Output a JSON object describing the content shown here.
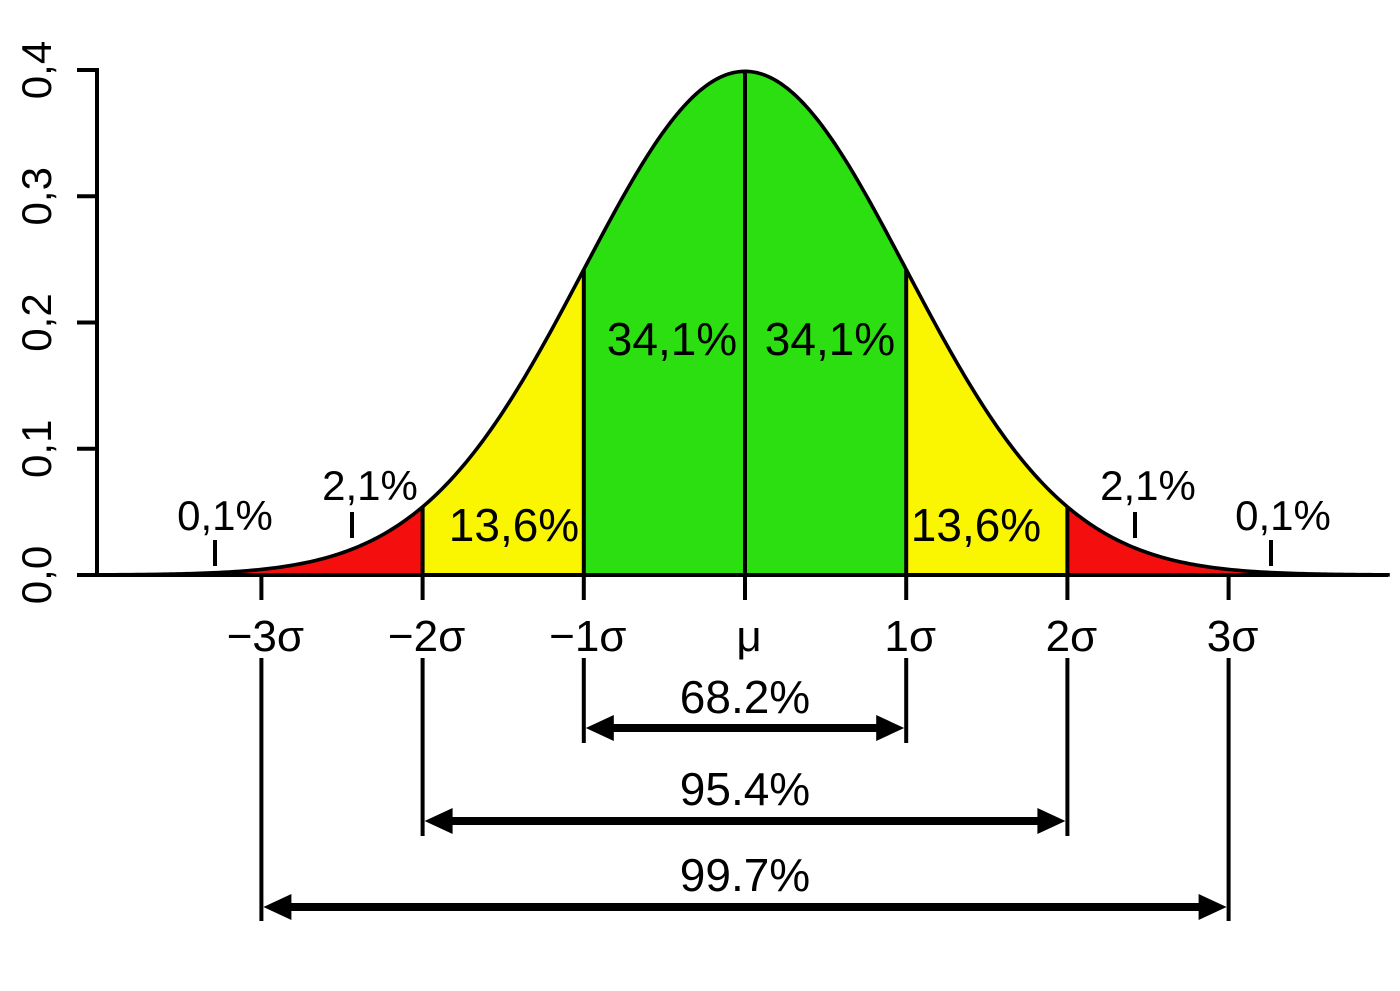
{
  "chart_data": {
    "type": "area",
    "title": "",
    "description": "Standard normal distribution density curve divided into standard-deviation bands with their probabilities (68-95-99.7 rule)",
    "grid": false,
    "legend": false,
    "x_axis": {
      "label": "",
      "tick_labels": [
        "−3σ",
        "−2σ",
        "−1σ",
        "μ",
        "1σ",
        "2σ",
        "3σ"
      ],
      "tick_values_sigma": [
        -3,
        -2,
        -1,
        0,
        1,
        2,
        3
      ],
      "range_sigma": [
        -4,
        4
      ]
    },
    "y_axis": {
      "label": "",
      "tick_labels": [
        "0,0",
        "0,1",
        "0,2",
        "0,3",
        "0,4"
      ],
      "tick_values": [
        0.0,
        0.1,
        0.2,
        0.3,
        0.4
      ],
      "range": [
        0.0,
        0.4
      ]
    },
    "curve": {
      "name": "normal-density",
      "formula": "phi(z) = exp(-z*z/2) / sqrt(2*pi)",
      "peak_value": 0.4
    },
    "bands": [
      {
        "from_sigma": -4,
        "to_sigma": -3,
        "label": "0,1%",
        "value_percent": 0.1,
        "fill": "white"
      },
      {
        "from_sigma": -3,
        "to_sigma": -2,
        "label": "2,1%",
        "value_percent": 2.1,
        "fill": "red"
      },
      {
        "from_sigma": -2,
        "to_sigma": -1,
        "label": "13,6%",
        "value_percent": 13.6,
        "fill": "yellow"
      },
      {
        "from_sigma": -1,
        "to_sigma": 0,
        "label": "34,1%",
        "value_percent": 34.1,
        "fill": "green"
      },
      {
        "from_sigma": 0,
        "to_sigma": 1,
        "label": "34,1%",
        "value_percent": 34.1,
        "fill": "green"
      },
      {
        "from_sigma": 1,
        "to_sigma": 2,
        "label": "13,6%",
        "value_percent": 13.6,
        "fill": "yellow"
      },
      {
        "from_sigma": 2,
        "to_sigma": 3,
        "label": "2,1%",
        "value_percent": 2.1,
        "fill": "red"
      },
      {
        "from_sigma": 3,
        "to_sigma": 4,
        "label": "0,1%",
        "value_percent": 0.1,
        "fill": "white"
      }
    ],
    "span_arrows": [
      {
        "from_sigma": -1,
        "to_sigma": 1,
        "label": "68.2%",
        "value_percent": 68.2
      },
      {
        "from_sigma": -2,
        "to_sigma": 2,
        "label": "95.4%",
        "value_percent": 95.4
      },
      {
        "from_sigma": -3,
        "to_sigma": 3,
        "label": "99.7%",
        "value_percent": 99.7
      }
    ],
    "colors": {
      "green": "#2cdf10",
      "yellow": "#faf500",
      "red": "#f40e0e",
      "curve": "#000000",
      "text": "#000000",
      "background": "#ffffff"
    }
  }
}
